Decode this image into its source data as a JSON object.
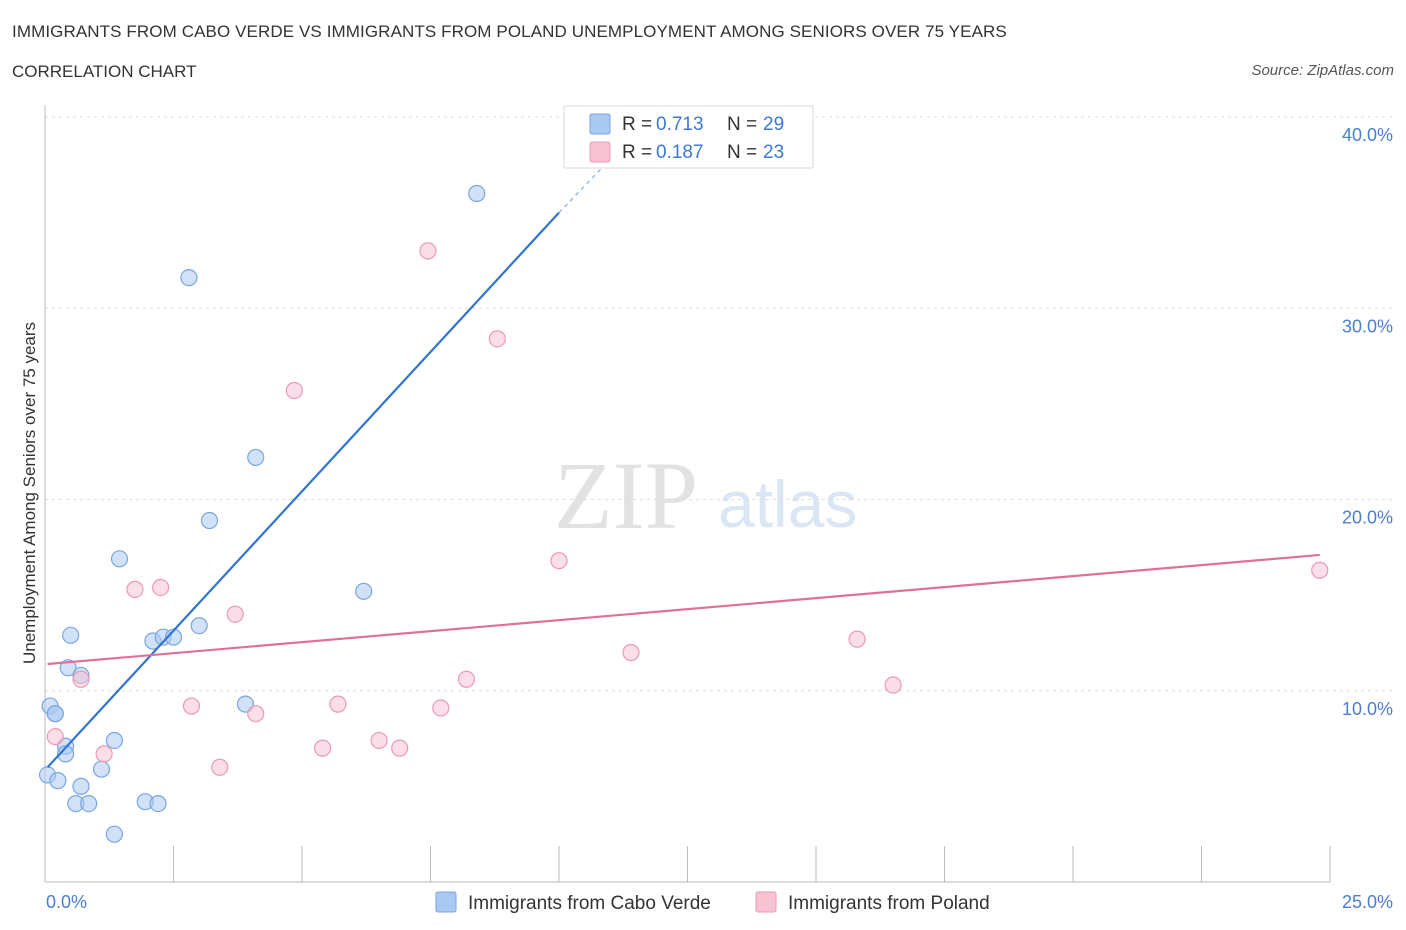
{
  "title": "IMMIGRANTS FROM CABO VERDE VS IMMIGRANTS FROM POLAND UNEMPLOYMENT AMONG SENIORS OVER 75 YEARS",
  "subtitle": "CORRELATION CHART",
  "source": "Source: ZipAtlas.com",
  "watermark": {
    "zip": "ZIP",
    "atlas": "atlas"
  },
  "chart_data": {
    "type": "scatter",
    "xlabel": "",
    "ylabel": "Unemployment Among Seniors over 75 years",
    "xlim": [
      0,
      25
    ],
    "ylim": [
      0,
      40
    ],
    "x_tick_labels": {
      "min": "0.0%",
      "max": "25.0%"
    },
    "y_ticks": [
      {
        "value": 10,
        "label": "10.0%"
      },
      {
        "value": 20,
        "label": "20.0%"
      },
      {
        "value": 30,
        "label": "30.0%"
      },
      {
        "value": 40,
        "label": "40.0%"
      }
    ],
    "grid": true,
    "legend_position": "top-center",
    "series": [
      {
        "name": "Immigrants from Cabo Verde",
        "color": "#a9c8f2",
        "stroke": "#7aa6e0",
        "line_color": "#2f74d0",
        "stats": {
          "r_label": "R = ",
          "r_value": "0.713",
          "n_label": "N = ",
          "n_value": "29"
        },
        "trend": {
          "x_start": 0.05,
          "y_start": 6.0,
          "x_end": 10.0,
          "y_end": 35.0,
          "dash_x_end": 11.0,
          "dash_y_end": 37.8
        },
        "points": [
          [
            0.05,
            5.6
          ],
          [
            0.1,
            9.2
          ],
          [
            0.2,
            8.8
          ],
          [
            0.25,
            5.3
          ],
          [
            0.4,
            7.1
          ],
          [
            0.4,
            6.7
          ],
          [
            0.45,
            11.2
          ],
          [
            0.5,
            12.9
          ],
          [
            0.6,
            4.1
          ],
          [
            0.7,
            5.0
          ],
          [
            0.7,
            10.8
          ],
          [
            0.85,
            4.1
          ],
          [
            1.1,
            5.9
          ],
          [
            1.35,
            2.5
          ],
          [
            1.35,
            7.4
          ],
          [
            1.45,
            16.9
          ],
          [
            1.95,
            4.2
          ],
          [
            2.2,
            4.1
          ],
          [
            2.1,
            12.6
          ],
          [
            2.3,
            12.8
          ],
          [
            2.5,
            12.8
          ],
          [
            2.8,
            31.6
          ],
          [
            3.0,
            13.4
          ],
          [
            3.2,
            18.9
          ],
          [
            3.9,
            9.3
          ],
          [
            4.1,
            22.2
          ],
          [
            6.2,
            15.2
          ],
          [
            8.4,
            36.0
          ],
          [
            0.2,
            8.8
          ]
        ]
      },
      {
        "name": "Immigrants from Poland",
        "color": "#f7c3d3",
        "stroke": "#eb9ab4",
        "line_color": "#e07098",
        "stats": {
          "r_label": "R = ",
          "r_value": "0.187",
          "n_label": "N = ",
          "n_value": "23"
        },
        "trend": {
          "x_start": 0.05,
          "y_start": 11.4,
          "x_end": 24.8,
          "y_end": 17.1
        },
        "points": [
          [
            0.2,
            7.6
          ],
          [
            0.7,
            10.6
          ],
          [
            1.15,
            6.7
          ],
          [
            1.75,
            15.3
          ],
          [
            2.25,
            15.4
          ],
          [
            2.85,
            9.2
          ],
          [
            3.4,
            6.0
          ],
          [
            3.7,
            14.0
          ],
          [
            4.1,
            8.8
          ],
          [
            4.85,
            25.7
          ],
          [
            5.4,
            7.0
          ],
          [
            5.7,
            9.3
          ],
          [
            6.5,
            7.4
          ],
          [
            6.9,
            7.0
          ],
          [
            7.45,
            33.0
          ],
          [
            7.7,
            9.1
          ],
          [
            8.2,
            10.6
          ],
          [
            8.8,
            28.4
          ],
          [
            10.0,
            16.8
          ],
          [
            11.4,
            12.0
          ],
          [
            15.8,
            12.7
          ],
          [
            16.5,
            10.3
          ],
          [
            24.8,
            16.3
          ]
        ]
      }
    ]
  }
}
